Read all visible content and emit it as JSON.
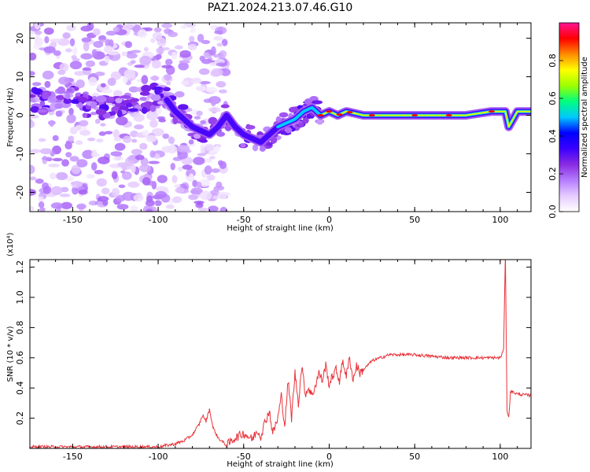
{
  "title": "PAZ1.2024.213.07.46.G10",
  "colors": {
    "snr_line": "#e8333a",
    "spectrogram_background": "#ffffff",
    "colormap": [
      "#ffffff",
      "#e6ccff",
      "#b57cff",
      "#8a2be2",
      "#3b00ff",
      "#0000ff",
      "#00c8ff",
      "#00ff7f",
      "#9cff00",
      "#ffff00",
      "#ff8c00",
      "#ff0000",
      "#ff1493"
    ]
  },
  "chart_data": [
    {
      "type": "heatmap",
      "xlabel": "Height of straight line (km)",
      "ylabel": "Frequency (Hz)",
      "xlim": [
        -175,
        118
      ],
      "ylim": [
        -25,
        24
      ],
      "xticks": [
        -150,
        -100,
        -50,
        0,
        50,
        100
      ],
      "yticks": [
        -20,
        -10,
        0,
        10,
        20
      ],
      "colorbar": {
        "label": "Normalized spectral amplitude",
        "range": [
          0,
          1
        ],
        "ticks": [
          0.0,
          0.2,
          0.4,
          0.6,
          0.8
        ]
      },
      "dominant_frequency_track": {
        "x": [
          -175,
          -160,
          -150,
          -140,
          -130,
          -110,
          -100,
          -95,
          -90,
          -85,
          -80,
          -75,
          -70,
          -65,
          -60,
          -55,
          -50,
          -45,
          -40,
          -35,
          -30,
          -25,
          -20,
          -15,
          -10,
          -5,
          0,
          5,
          10,
          20,
          40,
          60,
          80,
          95,
          100,
          103,
          105,
          110,
          118
        ],
        "y": [
          4,
          3,
          5,
          1,
          2,
          4,
          5,
          4,
          1,
          -1,
          -3,
          -4,
          -5,
          -3,
          0,
          -3,
          -5,
          -6,
          -7,
          -5,
          -3,
          -2,
          -1,
          1,
          2,
          0,
          1,
          0,
          1,
          0,
          0,
          0,
          0,
          1,
          1,
          1,
          -3,
          1,
          1
        ]
      }
    },
    {
      "type": "line",
      "xlabel": "Height of straight line (km)",
      "ylabel": "SNR (10 * v/v)",
      "y_multiplier": "(x10⁴)",
      "xlim": [
        -175,
        118
      ],
      "ylim": [
        0.0,
        1.25
      ],
      "xticks": [
        -150,
        -100,
        -50,
        0,
        50,
        100
      ],
      "yticks": [
        0.2,
        0.4,
        0.6,
        0.8,
        1.0,
        1.2
      ],
      "series": [
        {
          "x": [
            -175,
            -150,
            -120,
            -100,
            -90,
            -85,
            -80,
            -76,
            -74,
            -72,
            -70,
            -68,
            -65,
            -62,
            -60,
            -55,
            -50,
            -45,
            -42,
            -40,
            -38,
            -35,
            -33,
            -30,
            -28,
            -26,
            -24,
            -22,
            -20,
            -18,
            -16,
            -14,
            -12,
            -10,
            -8,
            -6,
            -4,
            -2,
            0,
            2,
            4,
            6,
            8,
            10,
            12,
            14,
            16,
            18,
            20,
            25,
            30,
            35,
            40,
            50,
            60,
            70,
            80,
            90,
            95,
            100,
            102,
            103,
            104,
            105,
            106,
            110,
            118
          ],
          "y": [
            0.01,
            0.01,
            0.01,
            0.01,
            0.03,
            0.05,
            0.09,
            0.16,
            0.22,
            0.18,
            0.26,
            0.14,
            0.07,
            0.04,
            0.02,
            0.07,
            0.1,
            0.06,
            0.12,
            0.08,
            0.16,
            0.25,
            0.1,
            0.2,
            0.35,
            0.15,
            0.45,
            0.2,
            0.5,
            0.3,
            0.55,
            0.36,
            0.4,
            0.35,
            0.42,
            0.5,
            0.45,
            0.55,
            0.42,
            0.48,
            0.52,
            0.45,
            0.58,
            0.48,
            0.6,
            0.45,
            0.55,
            0.5,
            0.52,
            0.58,
            0.6,
            0.62,
            0.62,
            0.62,
            0.61,
            0.6,
            0.6,
            0.6,
            0.6,
            0.6,
            0.65,
            1.3,
            0.25,
            0.2,
            0.38,
            0.36,
            0.35
          ]
        }
      ]
    }
  ]
}
